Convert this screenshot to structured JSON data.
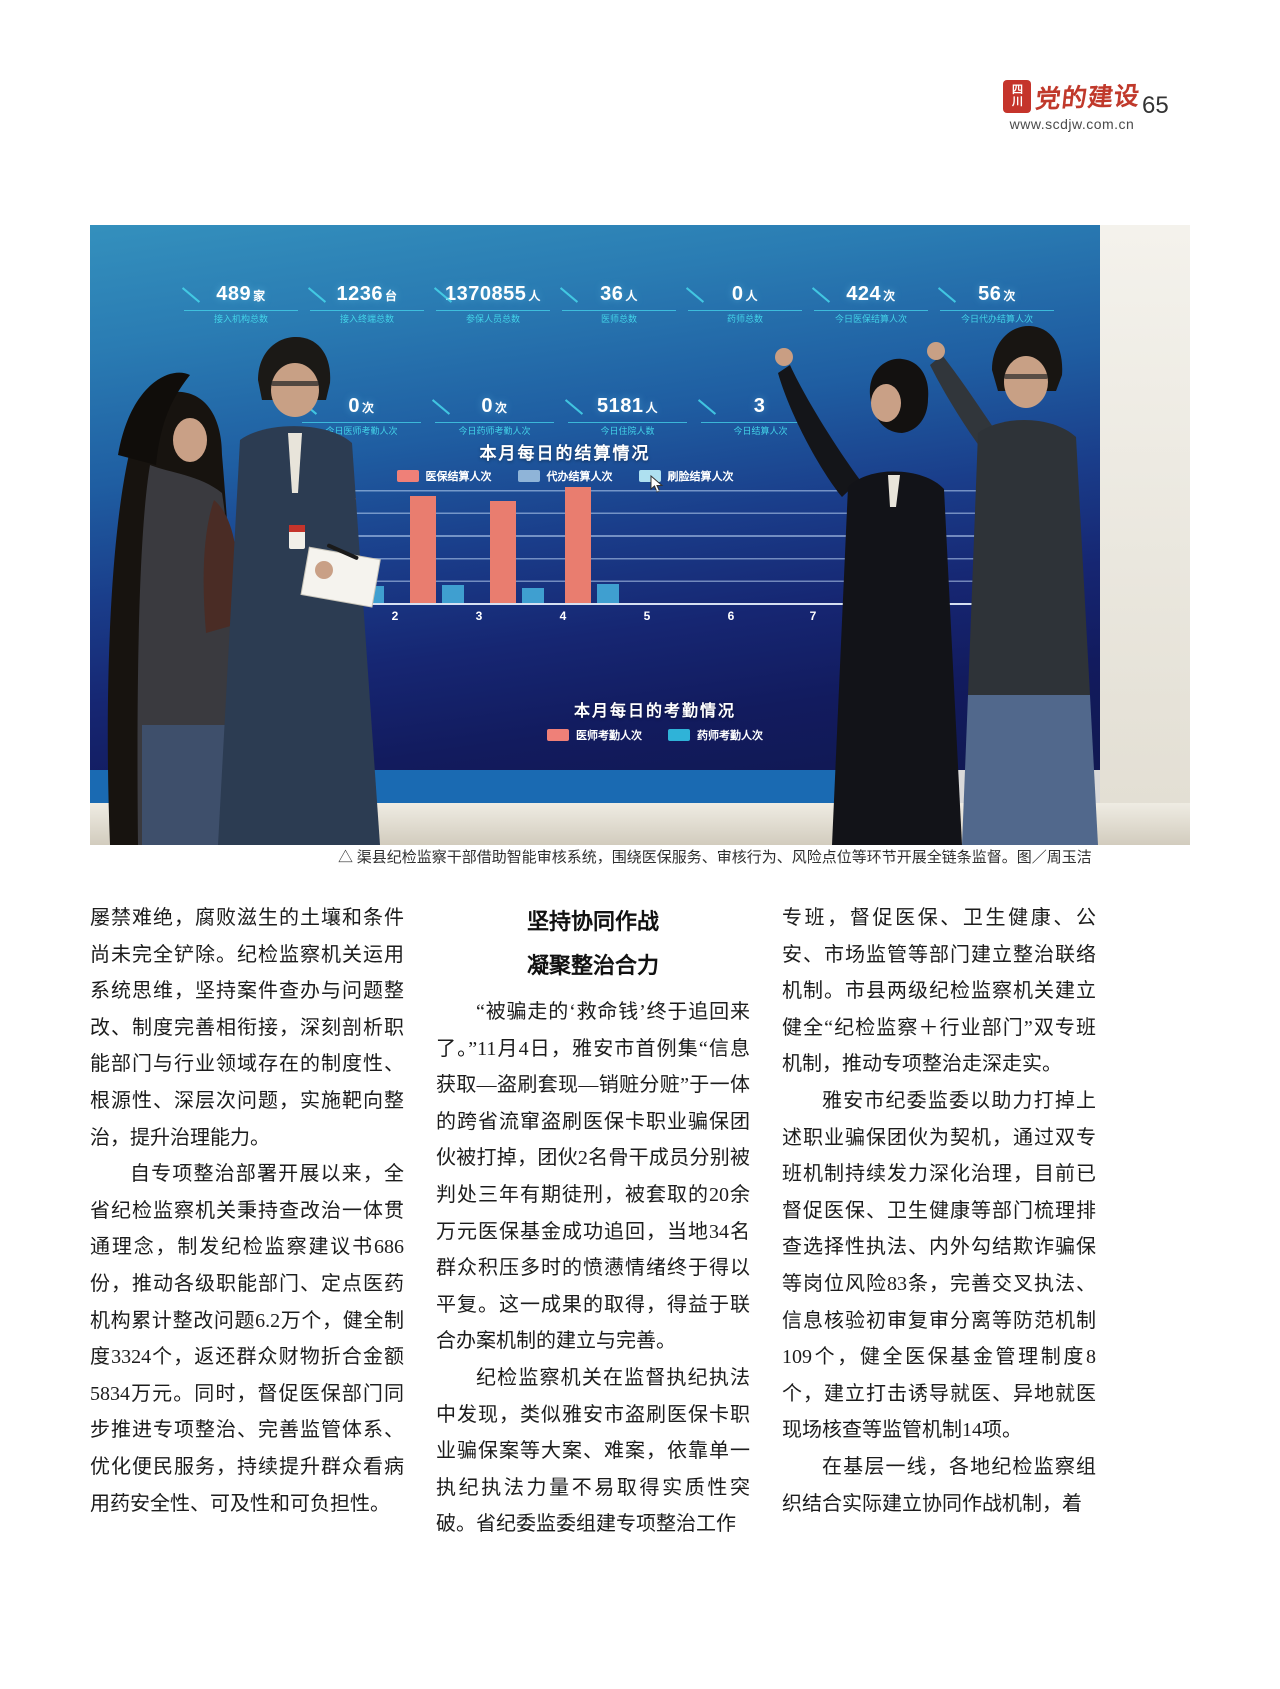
{
  "header": {
    "logo_seal_top": "四",
    "logo_seal_bottom": "川",
    "logo_script": "党的建设",
    "site_url": "www.scdjw.com.cn",
    "page_number": "65"
  },
  "photo": {
    "dashboard": {
      "stats_row1": [
        {
          "value": "489",
          "unit": "家",
          "label": "接入机构总数"
        },
        {
          "value": "1236",
          "unit": "台",
          "label": "接入终端总数"
        },
        {
          "value": "1370855",
          "unit": "人",
          "label": "参保人员总数"
        },
        {
          "value": "36",
          "unit": "人",
          "label": "医师总数"
        },
        {
          "value": "0",
          "unit": "人",
          "label": "药师总数"
        },
        {
          "value": "424",
          "unit": "次",
          "label": "今日医保结算人次"
        },
        {
          "value": "56",
          "unit": "次",
          "label": "今日代办结算人次"
        }
      ],
      "stats_row2": [
        {
          "value": "0",
          "unit": "次",
          "label": "今日医师考勤人次"
        },
        {
          "value": "0",
          "unit": "次",
          "label": "今日药师考勤人次"
        },
        {
          "value": "5181",
          "unit": "人",
          "label": "今日住院人数"
        },
        {
          "value": "3",
          "unit": "",
          "label": "今日结算人次"
        }
      ],
      "chart1": {
        "title": "本月每日的结算情况",
        "legend": [
          {
            "label": "医保结算人次",
            "color": "#ef8078"
          },
          {
            "label": "代办结算人次",
            "color": "#8fb4d8"
          },
          {
            "label": "刷脸结算人次",
            "color": "#aee0f0"
          }
        ],
        "x_labels": [
          "2",
          "3",
          "4",
          "5",
          "6",
          "7"
        ],
        "bars": [
          {
            "day": "2",
            "medical": 95,
            "agency": 15
          },
          {
            "day": "3",
            "medical": 97,
            "agency": 16
          },
          {
            "day": "4",
            "medical": 93,
            "agency": 14
          },
          {
            "day": "5",
            "medical": 105,
            "agency": 17
          }
        ]
      },
      "chart2": {
        "title": "本月每日的考勤情况",
        "legend": [
          {
            "label": "医师考勤人次",
            "color": "#ef8078"
          },
          {
            "label": "药师考勤人次",
            "color": "#2fb3d8"
          }
        ]
      }
    },
    "caption": "△ 渠县纪检监察干部借助智能审核系统，围绕医保服务、审核行为、风险点位等环节开展全链条监督。图／周玉洁"
  },
  "article": {
    "col1": {
      "p1": "屡禁难绝，腐败滋生的土壤和条件尚未完全铲除。纪检监察机关运用系统思维，坚持案件查办与问题整改、制度完善相衔接，深刻剖析职能部门与行业领域存在的制度性、根源性、深层次问题，实施靶向整治，提升治理能力。",
      "p2": "自专项整治部署开展以来，全省纪检监察机关秉持查改治一体贯通理念，制发纪检监察建议书686份，推动各级职能部门、定点医药机构累计整改问题6.2万个，健全制度3324个，返还群众财物折合金额5834万元。同时，督促医保部门同步推进专项整治、完善监管体系、优化便民服务，持续提升群众看病用药安全性、可及性和可负担性。"
    },
    "col2": {
      "heading_line1": "坚持协同作战",
      "heading_line2": "凝聚整治合力",
      "p1": "“被骗走的‘救命钱’终于追回来了。”11月4日，雅安市首例集“信息获取—盗刷套现—销赃分赃”于一体的跨省流窜盗刷医保卡职业骗保团伙被打掉，团伙2名骨干成员分别被判处三年有期徒刑，被套取的20余万元医保基金成功追回，当地34名群众积压多时的愤懑情绪终于得以平复。这一成果的取得，得益于联合办案机制的建立与完善。",
      "p2": "纪检监察机关在监督执纪执法中发现，类似雅安市盗刷医保卡职业骗保案等大案、难案，依靠单一执纪执法力量不易取得实质性突破。省纪委监委组建专项整治工作"
    },
    "col3": {
      "p1": "专班，督促医保、卫生健康、公安、市场监管等部门建立整治联络机制。市县两级纪检监察机关建立健全“纪检监察＋行业部门”双专班机制，推动专项整治走深走实。",
      "p2": "雅安市纪委监委以助力打掉上述职业骗保团伙为契机，通过双专班机制持续发力深化治理，目前已督促医保、卫生健康等部门梳理排查选择性执法、内外勾结欺诈骗保等岗位风险83条，完善交叉执法、信息核验初审复审分离等防范机制109个，健全医保基金管理制度8个，建立打击诱导就医、异地就医现场核查等监管机制14项。",
      "p3": "在基层一线，各地纪检监察组织结合实际建立协同作战机制，着"
    }
  }
}
